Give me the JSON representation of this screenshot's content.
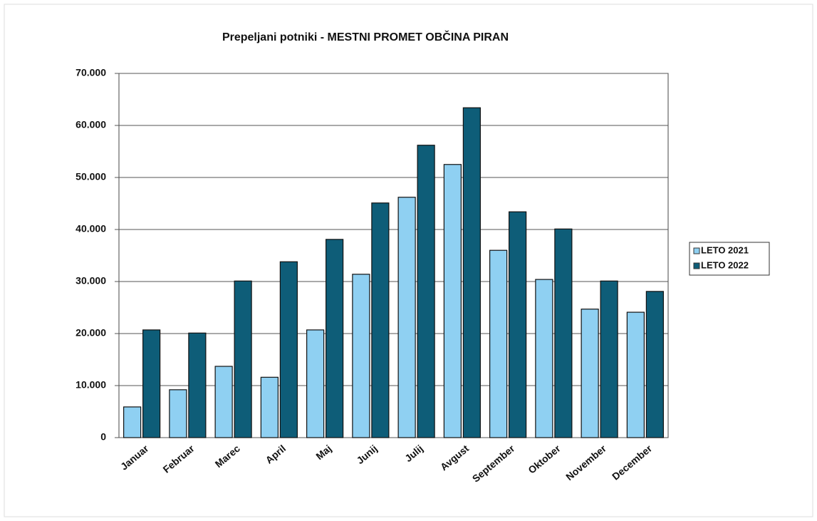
{
  "chart_data": {
    "type": "bar",
    "title": "Prepeljani potniki - MESTNI PROMET OBČINA PIRAN",
    "categories": [
      "Januar",
      "Februar",
      "Marec",
      "April",
      "Maj",
      "Junij",
      "Julij",
      "Avgust",
      "September",
      "Oktober",
      "November",
      "December"
    ],
    "series": [
      {
        "name": "LETO 2021",
        "color": "#8fd0f2",
        "values": [
          5900,
          9200,
          13700,
          11600,
          20700,
          31400,
          46200,
          52500,
          36000,
          30400,
          24700,
          24100
        ]
      },
      {
        "name": "LETO 2022",
        "color": "#0e5d78",
        "values": [
          20700,
          20100,
          30100,
          33800,
          38100,
          45100,
          56200,
          63400,
          43400,
          40100,
          30100,
          28100
        ]
      }
    ],
    "ylim": [
      0,
      70000
    ],
    "yticks": [
      0,
      {
        "value": 10000,
        "label": "10.000"
      },
      {
        "value": 20000,
        "label": "20.000"
      },
      {
        "value": 30000,
        "label": "30.000"
      },
      {
        "value": 40000,
        "label": "40.000"
      },
      {
        "value": 50000,
        "label": "50.000"
      },
      {
        "value": 60000,
        "label": "60.000"
      },
      {
        "value": 70000,
        "label": "70.000"
      }
    ],
    "grid": true,
    "legend": "right"
  }
}
